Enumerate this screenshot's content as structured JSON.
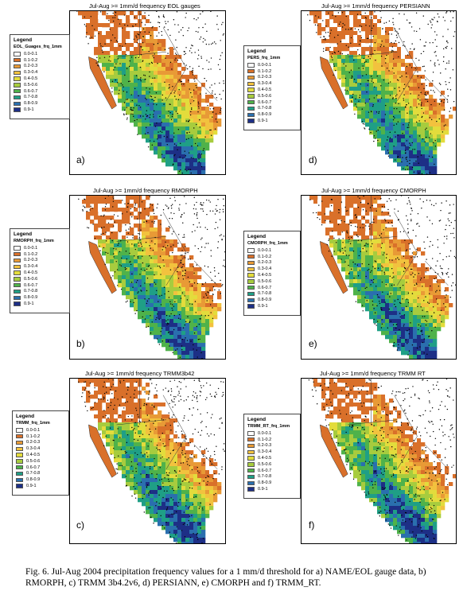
{
  "panels": [
    {
      "title": "Jul-Aug >= 1mm/d frequency EOL gauges",
      "letter": "a)",
      "legend_title": "Legend",
      "legend_field": "EOL_Guages_frq_1mm"
    },
    {
      "title": "Jul-Aug >= 1mm/d frequency RMORPH",
      "letter": "b)",
      "legend_title": "Legend",
      "legend_field": "RMORPH_frq_1mm"
    },
    {
      "title": "Jul-Aug >= 1mm/d frequency TRMM3b42",
      "letter": "c)",
      "legend_title": "Legend",
      "legend_field": "TRMM_frq_1mm"
    },
    {
      "title": "Jul-Aug >= 1mm/d frequency PERSIANN",
      "letter": "d)",
      "legend_title": "Legend",
      "legend_field": "PERS_frq_1mm"
    },
    {
      "title": "Jul-Aug >= 1mm/d frequency CMORPH",
      "letter": "e)",
      "legend_title": "Legend",
      "legend_field": "CMORPH_frq_1mm"
    },
    {
      "title": "Jul-Aug >= 1mm/d frequency TRMM RT",
      "letter": "f)",
      "legend_title": "Legend",
      "legend_field": "TRMM_RT_frq_1mm"
    }
  ],
  "legend_classes": [
    {
      "label": "0.0-0.1",
      "color": "#ffffff"
    },
    {
      "label": "0.1-0.2",
      "color": "#d9702a"
    },
    {
      "label": "0.2-0.3",
      "color": "#e89a36"
    },
    {
      "label": "0.3-0.4",
      "color": "#f2c23e"
    },
    {
      "label": "0.4-0.5",
      "color": "#e3dc3c"
    },
    {
      "label": "0.5-0.6",
      "color": "#a7cc3e"
    },
    {
      "label": "0.6-0.7",
      "color": "#4fb24a"
    },
    {
      "label": "0.7-0.8",
      "color": "#1f9f86"
    },
    {
      "label": "0.8-0.9",
      "color": "#2a6fae"
    },
    {
      "label": "0.9-1",
      "color": "#1d2f86"
    }
  ],
  "caption": "Fig. 6. Jul-Aug 2004 precipitation frequency values for a 1 mm/d threshold for a) NAME/EOL gauge data, b) RMORPH, c) TRMM 3b4.2v6, d) PERSIANN, e) CMORPH and f) TRMM_RT."
}
